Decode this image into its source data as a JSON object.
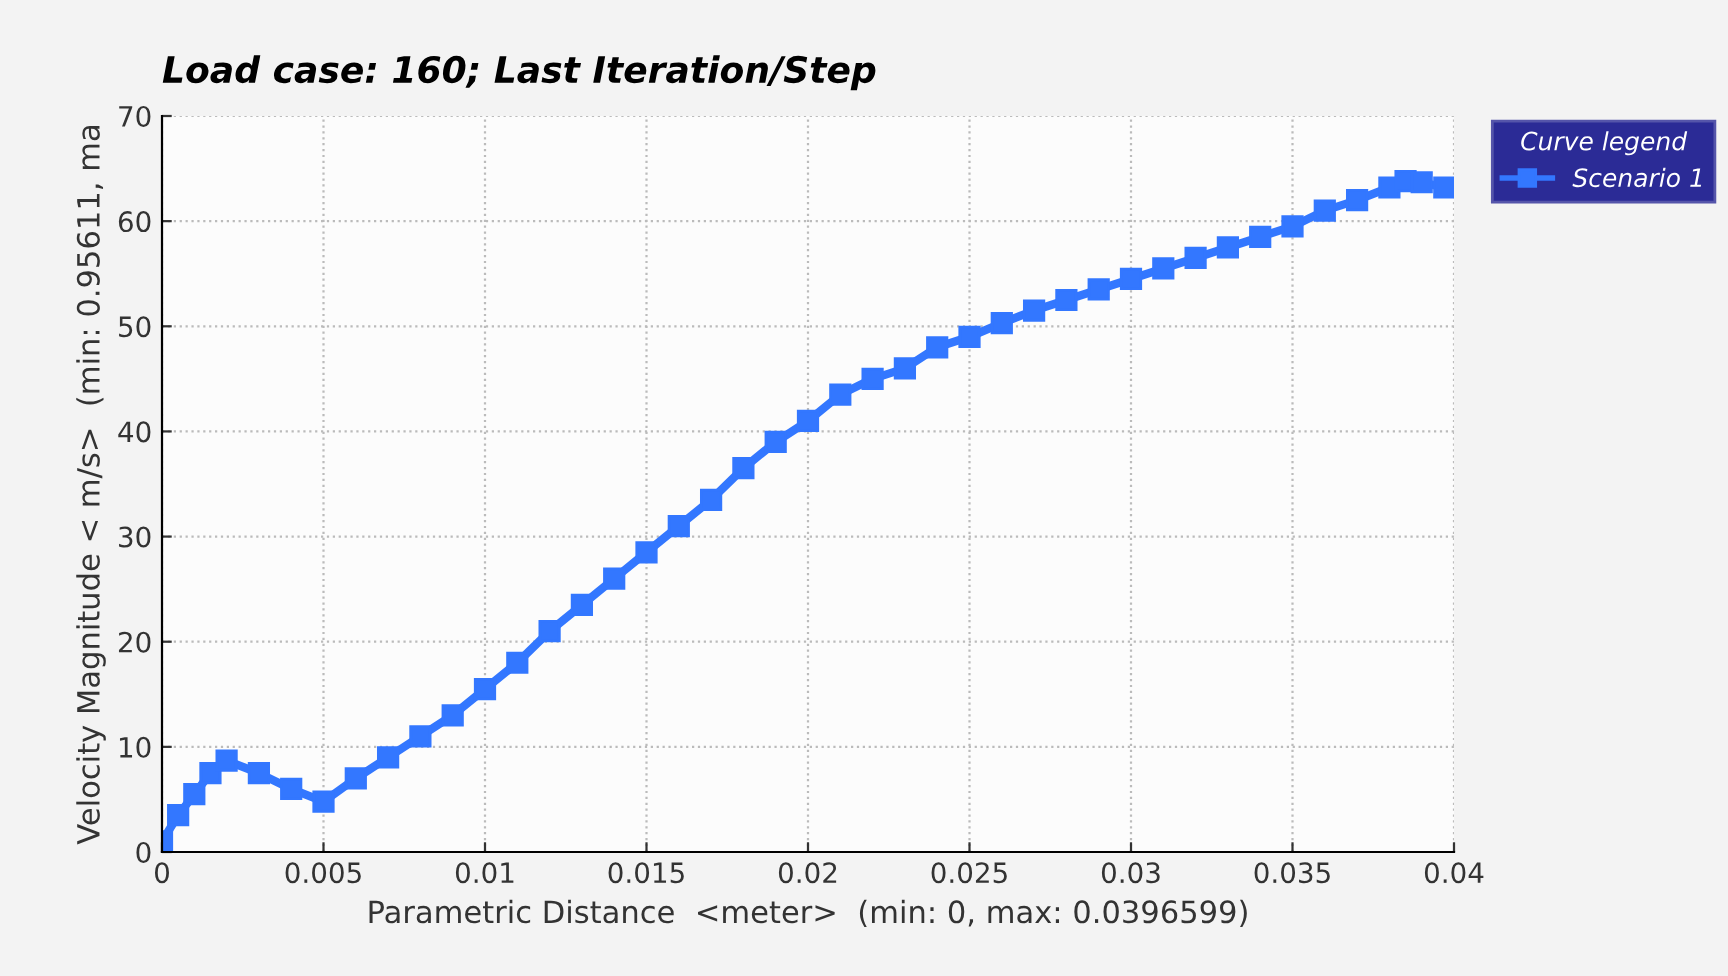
{
  "chart_data": {
    "type": "line",
    "title": "Load case: 160; Last Iteration/Step",
    "xlabel": "Parametric Distance  <meter>  (min: 0, max: 0.0396599)",
    "ylabel": "Velocity Magnitude < m/s>  (min: 0.95611, ma",
    "legend_title": "Curve legend",
    "x": [
      0,
      0.0005,
      0.001,
      0.0015,
      0.002,
      0.003,
      0.004,
      0.005,
      0.006,
      0.007,
      0.008,
      0.009,
      0.01,
      0.011,
      0.012,
      0.013,
      0.014,
      0.015,
      0.016,
      0.017,
      0.018,
      0.019,
      0.02,
      0.021,
      0.022,
      0.023,
      0.024,
      0.025,
      0.026,
      0.027,
      0.028,
      0.029,
      0.03,
      0.031,
      0.032,
      0.033,
      0.034,
      0.035,
      0.036,
      0.037,
      0.038,
      0.0385,
      0.039,
      0.0397
    ],
    "series": [
      {
        "name": "Scenario 1",
        "color": "#3377ff",
        "values": [
          1,
          3.5,
          5.5,
          7.5,
          8.7,
          7.5,
          6,
          4.8,
          7,
          9,
          11,
          13,
          15.5,
          18,
          21,
          23.5,
          26,
          28.5,
          31,
          33.5,
          36.5,
          39,
          41,
          43.5,
          45,
          46,
          48,
          49,
          50.3,
          51.5,
          52.5,
          53.5,
          54.5,
          55.5,
          56.5,
          57.5,
          58.5,
          59.5,
          61,
          62,
          63.2,
          63.8,
          63.7,
          63.2
        ]
      }
    ],
    "xlim": [
      0,
      0.04
    ],
    "xticks": [
      0,
      0.005,
      0.01,
      0.015,
      0.02,
      0.025,
      0.03,
      0.035,
      0.04
    ],
    "ylim": [
      0,
      70
    ],
    "yticks": [
      0,
      10,
      20,
      30,
      40,
      50,
      60,
      70
    ],
    "grid": true,
    "legend": "top right",
    "marker": "square",
    "line_style": "solid"
  }
}
